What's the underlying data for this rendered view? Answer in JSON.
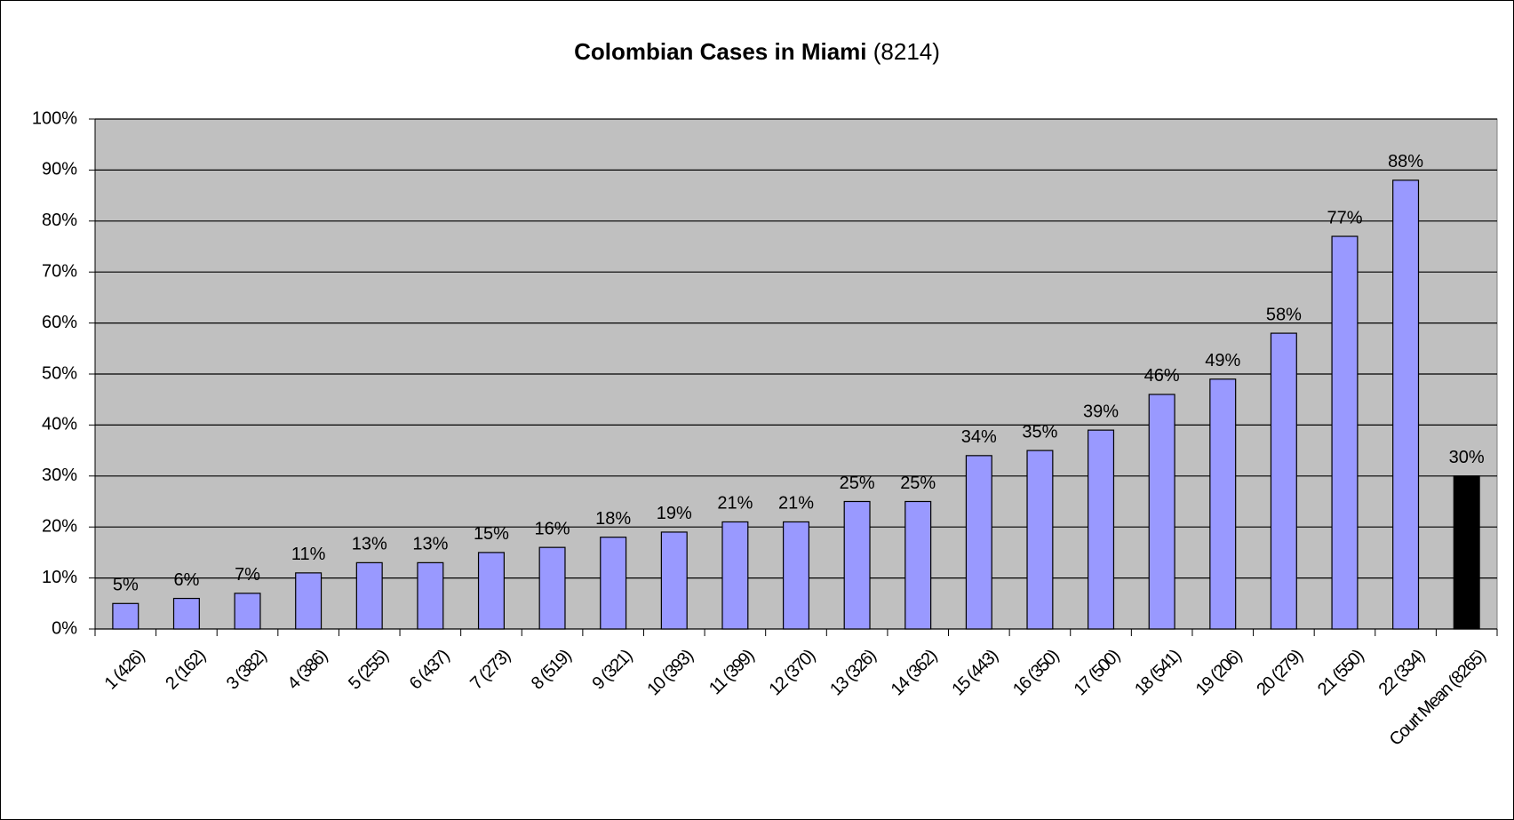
{
  "chart_data": {
    "type": "bar",
    "title": "Colombian Cases in Miami",
    "subtitle": "(8214)",
    "categories": [
      "1 (426)",
      "2 (162)",
      "3 (382)",
      "4 (386)",
      "5 (255)",
      "6 (437)",
      "7 (273)",
      "8 (519)",
      "9 (321)",
      "10 (393)",
      "11 (399)",
      "12 (370)",
      "13 (326)",
      "14 (362)",
      "15 (443)",
      "16 (350)",
      "17 (500)",
      "18 (541)",
      "19 (206)",
      "20 (279)",
      "21 (550)",
      "22 (334)",
      "Court Mean (8265)"
    ],
    "values": [
      5,
      6,
      7,
      11,
      13,
      13,
      15,
      16,
      18,
      19,
      21,
      21,
      25,
      25,
      34,
      35,
      39,
      46,
      49,
      58,
      77,
      88,
      30
    ],
    "value_labels": [
      "5%",
      "6%",
      "7%",
      "11%",
      "13%",
      "13%",
      "15%",
      "16%",
      "18%",
      "19%",
      "21%",
      "21%",
      "25%",
      "25%",
      "34%",
      "35%",
      "39%",
      "46%",
      "49%",
      "58%",
      "77%",
      "88%",
      "30%"
    ],
    "colors": [
      "#9999ff",
      "#9999ff",
      "#9999ff",
      "#9999ff",
      "#9999ff",
      "#9999ff",
      "#9999ff",
      "#9999ff",
      "#9999ff",
      "#9999ff",
      "#9999ff",
      "#9999ff",
      "#9999ff",
      "#9999ff",
      "#9999ff",
      "#9999ff",
      "#9999ff",
      "#9999ff",
      "#9999ff",
      "#9999ff",
      "#9999ff",
      "#9999ff",
      "#000000"
    ],
    "ylim": [
      0,
      100
    ],
    "yticks": [
      {
        "value": 0,
        "label": "0%"
      },
      {
        "value": 10,
        "label": "10%"
      },
      {
        "value": 20,
        "label": "20%"
      },
      {
        "value": 30,
        "label": "30%"
      },
      {
        "value": 40,
        "label": "40%"
      },
      {
        "value": 50,
        "label": "50%"
      },
      {
        "value": 60,
        "label": "60%"
      },
      {
        "value": 70,
        "label": "70%"
      },
      {
        "value": 80,
        "label": "80%"
      },
      {
        "value": 90,
        "label": "90%"
      },
      {
        "value": 100,
        "label": "100%"
      }
    ],
    "grid": true
  }
}
